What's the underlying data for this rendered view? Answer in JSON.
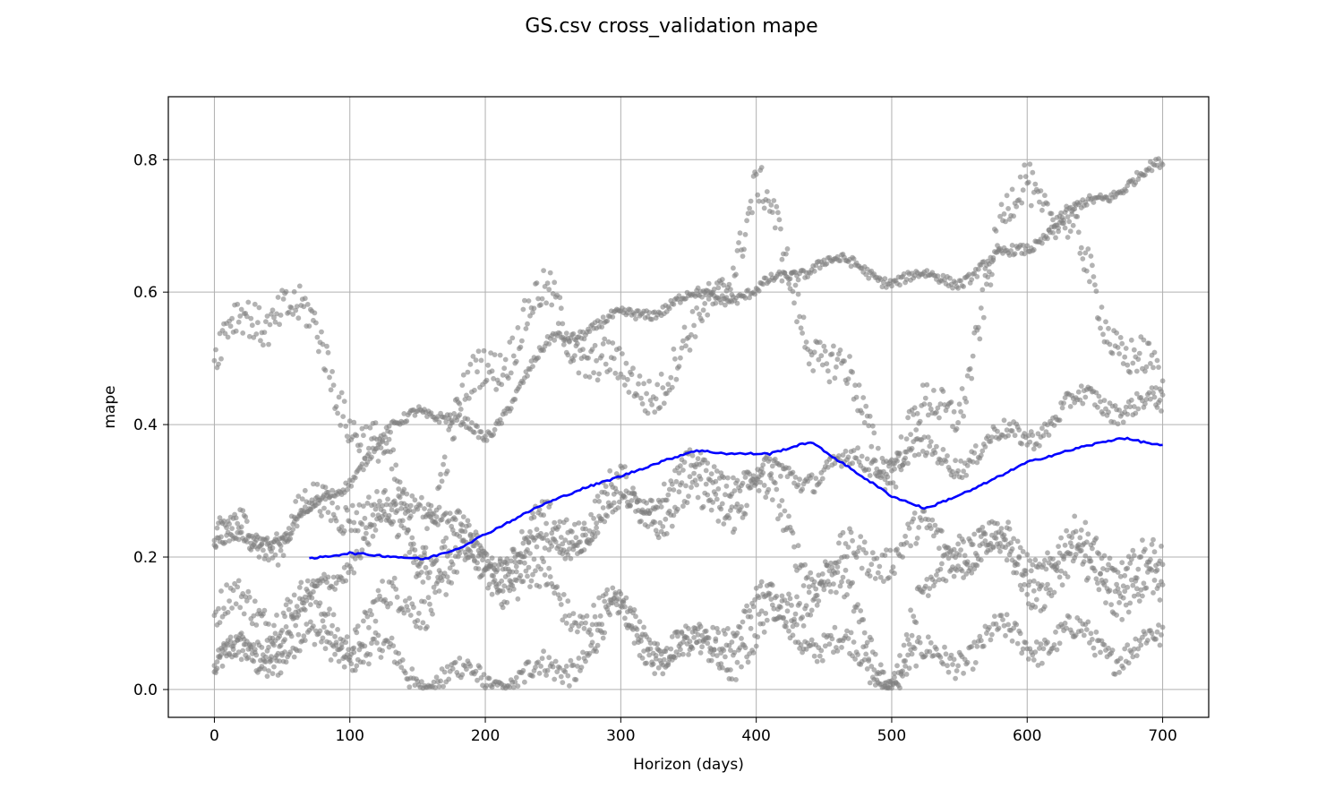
{
  "chart_data": {
    "type": "scatter",
    "title": "GS.csv cross_validation mape",
    "xlabel": "Horizon (days)",
    "ylabel": "mape",
    "xlim": [
      -34,
      734
    ],
    "ylim": [
      -0.042,
      0.895
    ],
    "xticks": [
      0,
      100,
      200,
      300,
      400,
      500,
      600,
      700
    ],
    "xtick_labels": [
      "0",
      "100",
      "200",
      "300",
      "400",
      "500",
      "600",
      "700"
    ],
    "yticks": [
      0.0,
      0.2,
      0.4,
      0.6,
      0.8
    ],
    "ytick_labels": [
      "0.0",
      "0.2",
      "0.4",
      "0.6",
      "0.8"
    ],
    "grid": true,
    "point_color": "#808080",
    "line_color": "#0000ff",
    "scatter_bands": [
      {
        "x": [
          0,
          50,
          100,
          150,
          200,
          250,
          300,
          350,
          400,
          450,
          500,
          550,
          600,
          650,
          700
        ],
        "y": [
          0.03,
          0.06,
          0.07,
          0.02,
          0.01,
          0.02,
          0.11,
          0.05,
          0.13,
          0.07,
          0.02,
          0.06,
          0.08,
          0.07,
          0.06
        ],
        "spread": 0.04
      },
      {
        "x": [
          0,
          50,
          100,
          150,
          200,
          250,
          300,
          350,
          400,
          450,
          500,
          550,
          600,
          650,
          700
        ],
        "y": [
          0.11,
          0.13,
          0.09,
          0.14,
          0.19,
          0.14,
          0.1,
          0.05,
          0.07,
          0.18,
          0.02,
          0.24,
          0.17,
          0.17,
          0.13
        ],
        "spread": 0.05
      },
      {
        "x": [
          0,
          50,
          100,
          150,
          200,
          250,
          300,
          350,
          400,
          450,
          500,
          550,
          600,
          650,
          700
        ],
        "y": [
          0.22,
          0.24,
          0.29,
          0.21,
          0.19,
          0.24,
          0.29,
          0.27,
          0.3,
          0.17,
          0.22,
          0.22,
          0.2,
          0.21,
          0.17
        ],
        "spread": 0.05
      },
      {
        "x": [
          0,
          50,
          100,
          150,
          200,
          250,
          300,
          350,
          400,
          450,
          500,
          550,
          600,
          650,
          700
        ],
        "y": [
          0.22,
          0.23,
          0.32,
          0.43,
          0.38,
          0.53,
          0.56,
          0.59,
          0.6,
          0.65,
          0.62,
          0.62,
          0.67,
          0.74,
          0.79
        ],
        "spread": 0.015
      },
      {
        "x": [
          0,
          50,
          100,
          150,
          200,
          250,
          300,
          350,
          400,
          450,
          500,
          550,
          600,
          650,
          700
        ],
        "y": [
          0.5,
          0.6,
          0.43,
          0.23,
          0.5,
          0.58,
          0.45,
          0.5,
          0.75,
          0.5,
          0.35,
          0.45,
          0.8,
          0.6,
          0.43
        ],
        "spread": 0.06
      },
      {
        "x": [
          0,
          50,
          100,
          150,
          200,
          250,
          300,
          350,
          400,
          450,
          500,
          550,
          600,
          650,
          700
        ],
        "y": [
          0.04,
          0.08,
          0.2,
          0.3,
          0.2,
          0.21,
          0.27,
          0.33,
          0.32,
          0.33,
          0.35,
          0.35,
          0.39,
          0.44,
          0.42
        ],
        "spread": 0.03
      }
    ],
    "series": [
      {
        "x": [
          70,
          100,
          130,
          155,
          180,
          210,
          240,
          270,
          300,
          330,
          355,
          380,
          410,
          440,
          470,
          500,
          525,
          560,
          600,
          640,
          670,
          700
        ],
        "y": [
          0.197,
          0.206,
          0.201,
          0.197,
          0.213,
          0.245,
          0.277,
          0.302,
          0.322,
          0.344,
          0.361,
          0.356,
          0.356,
          0.374,
          0.333,
          0.292,
          0.273,
          0.302,
          0.343,
          0.366,
          0.38,
          0.368
        ]
      }
    ]
  }
}
